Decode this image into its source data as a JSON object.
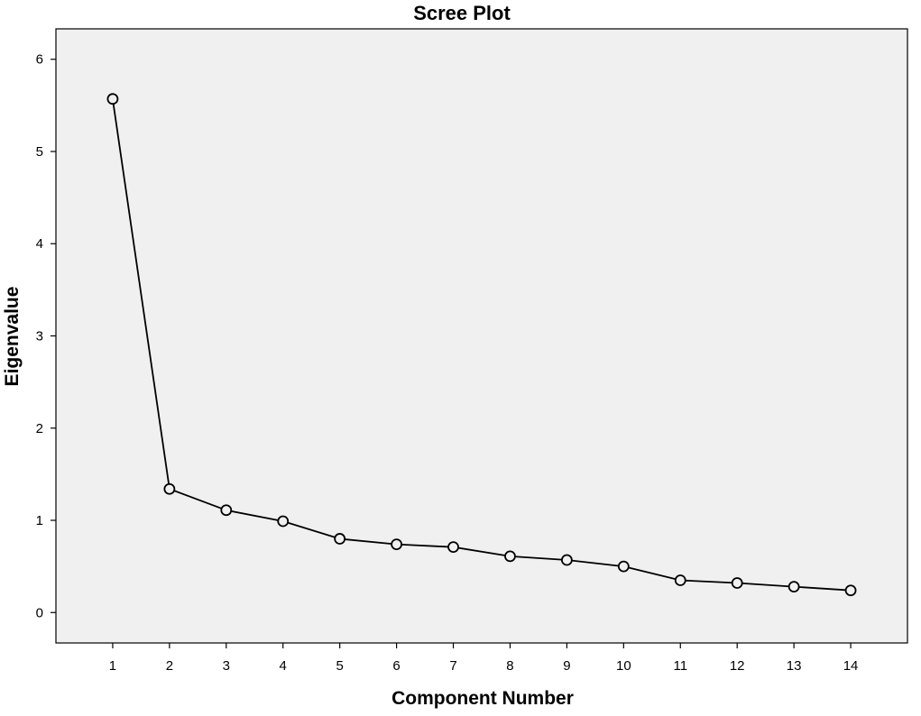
{
  "chart_data": {
    "type": "line",
    "title": "Scree Plot",
    "xlabel": "Component Number",
    "ylabel": "Eigenvalue",
    "x": [
      1,
      2,
      3,
      4,
      5,
      6,
      7,
      8,
      9,
      10,
      11,
      12,
      13,
      14
    ],
    "series": [
      {
        "values": [
          5.57,
          1.34,
          1.11,
          0.99,
          0.8,
          0.74,
          0.71,
          0.61,
          0.57,
          0.5,
          0.35,
          0.32,
          0.28,
          0.24
        ],
        "marker": "open-circle",
        "color": "#000000"
      }
    ],
    "xticks": [
      "1",
      "2",
      "3",
      "4",
      "5",
      "6",
      "7",
      "8",
      "9",
      "10",
      "11",
      "12",
      "13",
      "14"
    ],
    "yticks": [
      "0",
      "1",
      "2",
      "3",
      "4",
      "5",
      "6"
    ],
    "xlim": [
      0,
      15
    ],
    "ylim": [
      -0.33,
      6.33
    ],
    "grid": false,
    "legend": "none",
    "plot_background": "#f0f0f0"
  }
}
